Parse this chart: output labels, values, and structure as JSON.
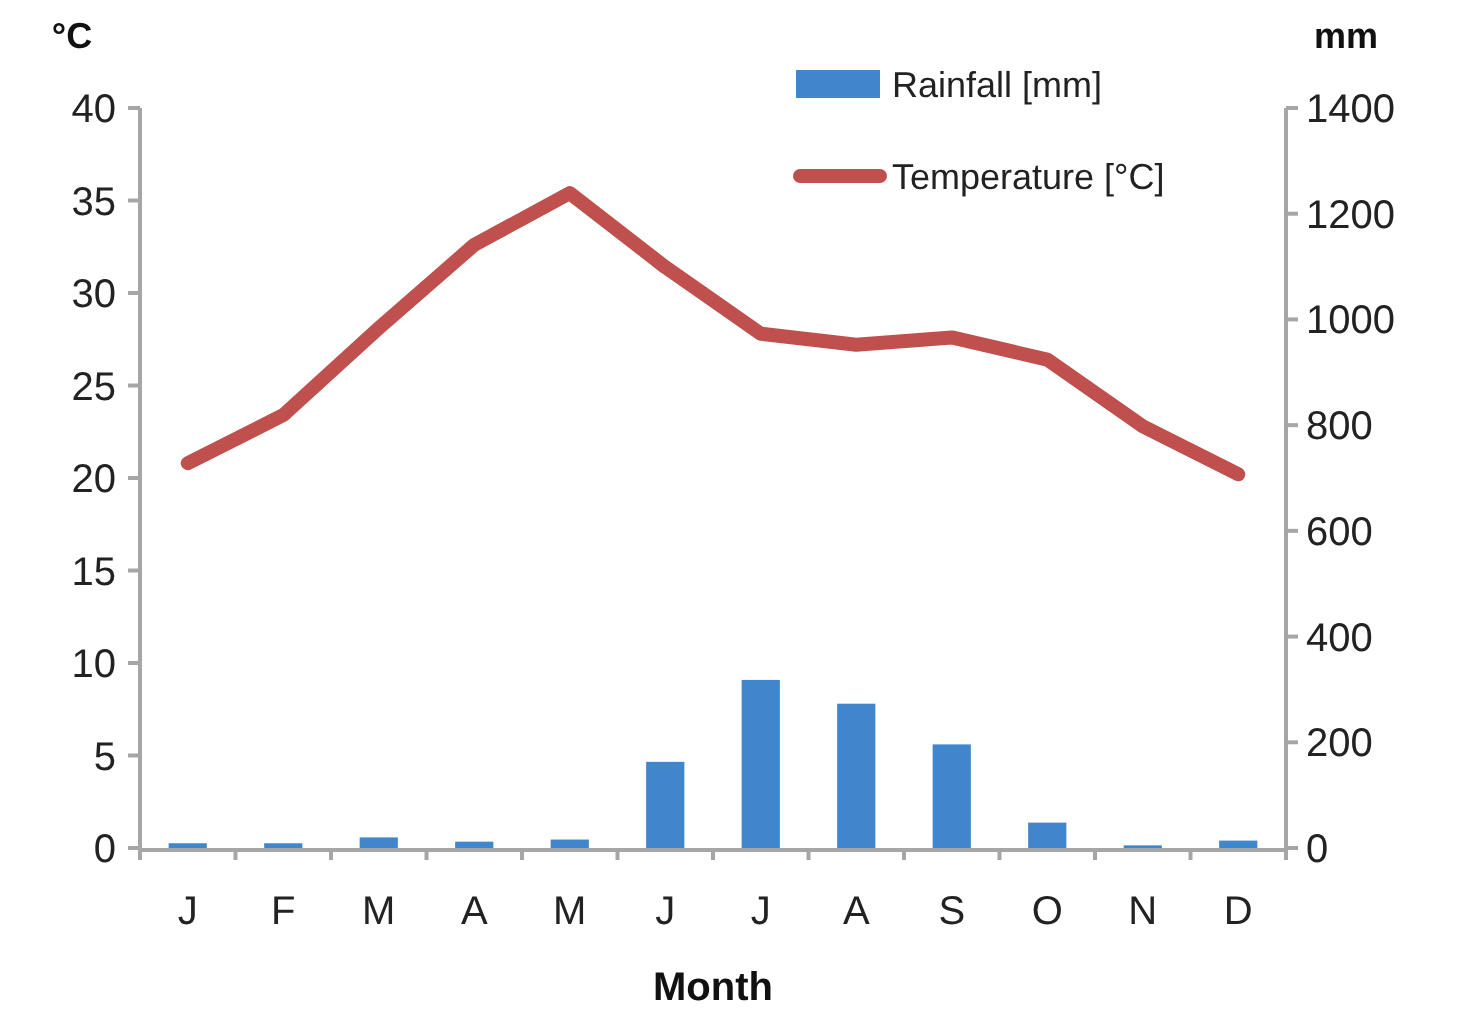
{
  "chart_data": {
    "type": "bar",
    "xlabel": "Month",
    "ylabel": "°C",
    "y2label": "mm",
    "categories": [
      "J",
      "F",
      "M",
      "A",
      "M",
      "J",
      "J",
      "A",
      "S",
      "O",
      "N",
      "D"
    ],
    "series": [
      {
        "name": "Rainfall [mm]",
        "axis": "y2",
        "color": "#3f86cc",
        "values": [
          9,
          9,
          20,
          12,
          16,
          163,
          318,
          273,
          196,
          48,
          5,
          14
        ]
      },
      {
        "name": "Temperature [°C]",
        "type": "line",
        "axis": "y",
        "color": "#c0504d",
        "values": [
          20.8,
          23.4,
          28.1,
          32.6,
          35.4,
          31.4,
          27.8,
          27.2,
          27.6,
          26.4,
          22.8,
          20.2
        ]
      }
    ],
    "ylim": [
      0,
      40
    ],
    "yticks": [
      0,
      5,
      10,
      15,
      20,
      25,
      30,
      35,
      40
    ],
    "y2lim": [
      0,
      1400
    ],
    "y2ticks": [
      0,
      200,
      400,
      600,
      800,
      1000,
      1200,
      1400
    ],
    "legend": "top right",
    "grid": false,
    "marker": "none",
    "line_style": "solid"
  }
}
